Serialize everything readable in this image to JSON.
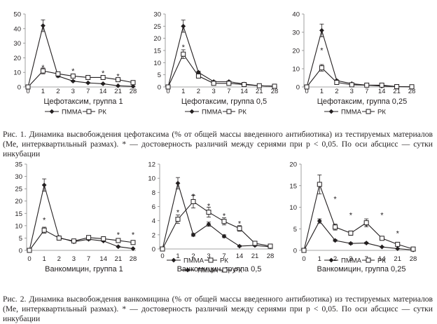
{
  "chart_data": [
    {
      "type": "line",
      "title": "Цефотаксим, группа 1",
      "categories": [
        "0",
        "1",
        "2",
        "3",
        "7",
        "14",
        "21",
        "28"
      ],
      "ylim": [
        0,
        50
      ],
      "yticks": [
        "0",
        "10",
        "20",
        "30",
        "40",
        "50"
      ],
      "series": [
        {
          "name": "ПММА",
          "values": [
            0,
            42,
            7.5,
            4,
            2.8,
            2.2,
            0.8,
            0.4
          ],
          "err": [
            0,
            4,
            0.8,
            0.5,
            0.4,
            0.4,
            0.2,
            0.1
          ]
        },
        {
          "name": "РК",
          "values": [
            0,
            11,
            9,
            7.5,
            6.5,
            6.5,
            5,
            3
          ],
          "err": [
            0,
            2,
            1,
            1,
            1,
            1,
            0.8,
            0.5
          ]
        }
      ],
      "stars": [
        {
          "x": "1",
          "y": 14.5
        },
        {
          "x": "3",
          "y": 12
        },
        {
          "x": "14",
          "y": 10.5
        },
        {
          "x": "21",
          "y": 8.5
        }
      ],
      "legend_position": "bottom"
    },
    {
      "type": "line",
      "title": "Цефотаксим, группа 0,5",
      "categories": [
        "0",
        "1",
        "2",
        "3",
        "7",
        "14",
        "21",
        "28"
      ],
      "ylim": [
        0,
        30
      ],
      "yticks": [
        "0",
        "5",
        "10",
        "15",
        "20",
        "25",
        "30"
      ],
      "series": [
        {
          "name": "ПММА",
          "values": [
            0,
            25,
            6,
            2.2,
            2.2,
            1.2,
            0.5,
            0.3
          ],
          "err": [
            0,
            2.5,
            0.5,
            0.3,
            0.3,
            0.2,
            0.1,
            0.1
          ]
        },
        {
          "name": "РК",
          "values": [
            0,
            13.5,
            4.5,
            1.5,
            1.5,
            1,
            0.5,
            0.3
          ],
          "err": [
            0,
            1.8,
            0.5,
            0.3,
            0.3,
            0.2,
            0.1,
            0.1
          ]
        }
      ],
      "stars": [
        {
          "x": "1",
          "y": 17
        }
      ],
      "legend_position": "bottom"
    },
    {
      "type": "line",
      "title": "Цефотаксим, группа 0,25",
      "categories": [
        "0",
        "1",
        "2",
        "3",
        "7",
        "14",
        "21",
        "28"
      ],
      "ylim": [
        0,
        40
      ],
      "yticks": [
        "0",
        "10",
        "20",
        "30",
        "40"
      ],
      "series": [
        {
          "name": "ПММА",
          "values": [
            0,
            31,
            3.5,
            1.8,
            1,
            0.5,
            0.2,
            0.1
          ],
          "err": [
            0,
            3.5,
            0.4,
            0.2,
            0.1,
            0.1,
            0,
            0
          ]
        },
        {
          "name": "РК",
          "values": [
            0,
            10.5,
            2.5,
            1.2,
            1,
            1,
            0.2,
            0.1
          ],
          "err": [
            0,
            1.8,
            0.4,
            0.2,
            0.1,
            0.1,
            0,
            0
          ]
        }
      ],
      "stars": [
        {
          "x": "1",
          "y": 21
        }
      ],
      "legend_position": "bottom"
    },
    {
      "type": "line",
      "title": "Ванкомицин, группа 1",
      "categories": [
        "0",
        "1",
        "2",
        "3",
        "7",
        "14",
        "21",
        "28"
      ],
      "ylim": [
        0,
        35
      ],
      "yticks": [
        "0",
        "5",
        "10",
        "15",
        "20",
        "25",
        "30",
        "35"
      ],
      "series": [
        {
          "name": "ПММА",
          "values": [
            0,
            26.5,
            5.2,
            3.5,
            4.5,
            3.8,
            1.5,
            0.7
          ],
          "err": [
            0,
            2.5,
            0.5,
            0.3,
            0.4,
            0.3,
            0.2,
            0.1
          ]
        },
        {
          "name": "РК",
          "values": [
            0,
            8.2,
            5,
            3.8,
            5.2,
            4.7,
            4,
            3.2
          ],
          "err": [
            0,
            1.2,
            0.5,
            0.4,
            0.5,
            0.5,
            0.4,
            0.3
          ]
        }
      ],
      "stars": [
        {
          "x": "1",
          "y": 13
        },
        {
          "x": "21",
          "y": 7
        },
        {
          "x": "28",
          "y": 7
        }
      ],
      "legend_position": "bottom"
    },
    {
      "type": "line",
      "title": "Ванкомицин, группа 0,5",
      "categories": [
        "0",
        "1",
        "2",
        "3",
        "7",
        "14",
        "21",
        "28"
      ],
      "ylim": [
        0,
        12
      ],
      "yticks": [
        "0",
        "2",
        "4",
        "6",
        "8",
        "10",
        "12"
      ],
      "series": [
        {
          "name": "ПММА",
          "values": [
            0,
            9.3,
            2,
            3.5,
            1.8,
            0.4,
            0.5,
            0.3
          ],
          "err": [
            0,
            0.8,
            0.2,
            0.3,
            0.2,
            0.1,
            0.1,
            0.1
          ]
        },
        {
          "name": "РК",
          "values": [
            0,
            4.2,
            6.7,
            5.2,
            3.9,
            2.9,
            0.8,
            0.4
          ],
          "err": [
            0,
            0.6,
            0.9,
            0.7,
            0.5,
            0.4,
            0.2,
            0.1
          ]
        }
      ],
      "stars": [
        {
          "x": "1",
          "y": 5.4
        },
        {
          "x": "2",
          "y": 7.7
        },
        {
          "x": "3",
          "y": 6.3
        },
        {
          "x": "7",
          "y": 4.9
        },
        {
          "x": "14",
          "y": 3.8
        }
      ],
      "legend_position": "bottom"
    },
    {
      "type": "line",
      "title": "Ванкомицин, группа 0,25",
      "categories": [
        "0",
        "1",
        "2",
        "3",
        "7",
        "14",
        "21",
        "28"
      ],
      "ylim": [
        0,
        20
      ],
      "yticks": [
        "0",
        "5",
        "10",
        "15",
        "20"
      ],
      "series": [
        {
          "name": "ПММА",
          "values": [
            0,
            6.8,
            2.3,
            1.6,
            1.7,
            0.8,
            0.4,
            0.1
          ],
          "err": [
            0,
            0.5,
            0.2,
            0.2,
            0.2,
            0.1,
            0.1,
            0
          ]
        },
        {
          "name": "РК",
          "values": [
            0,
            15.3,
            5.4,
            4,
            6.4,
            2.8,
            1.4,
            0.3
          ],
          "err": [
            0,
            2.2,
            0.7,
            0.5,
            0.9,
            0.3,
            0.2,
            0.1
          ]
        }
      ],
      "stars": [
        {
          "x": "2",
          "y": 12.3
        },
        {
          "x": "3",
          "y": 8.5
        },
        {
          "x": "7",
          "y": 5.8
        },
        {
          "x": "14",
          "y": 8.5
        },
        {
          "x": "21",
          "y": 4.3
        }
      ],
      "legend_position": "bottom"
    }
  ],
  "captions": {
    "fig1": "Рис. 1. Динамика высвобождения цефотаксима (% от общей массы введенного антибиотика) из тестируемых материалов (Ме, интерквартильный размах). * — достоверность различий между сериями при p < 0,05. По оси абсцисс — сутки инкубации",
    "fig2": "Рис. 2. Динамика высвобождения ванкомицина (% от общей массы введенного антибиотика) из тестируемых материалов (Ме, интерквартильный размах). * — достоверность различий между сериями при p < 0,05. По оси абсцисс — сутки инкубации"
  },
  "star_glyph": "*",
  "colors": {
    "ink": "#231f20"
  }
}
